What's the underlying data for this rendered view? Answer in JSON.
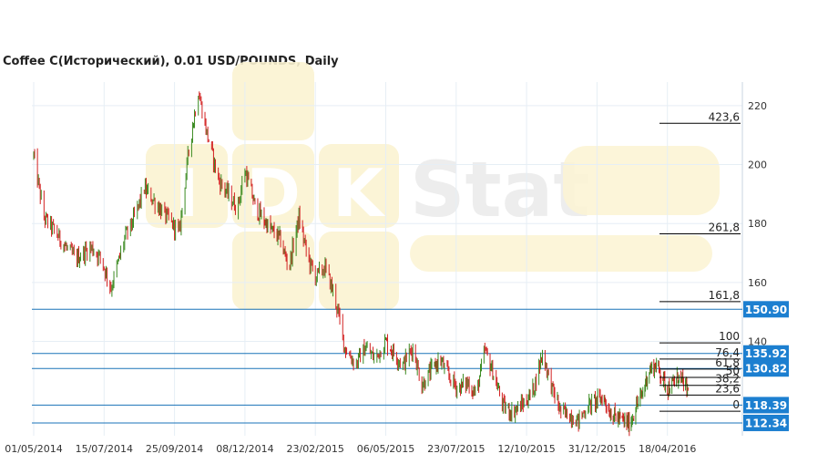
{
  "title": "Coffee C(Исторический), 0.01 USD/POUNDS, Daily",
  "watermark": {
    "letters": [
      "I",
      "D",
      "K"
    ],
    "word": "Stat"
  },
  "colors": {
    "up": "#3a8a20",
    "down": "#d22020",
    "level_line": "#1a73b8",
    "badge_bg": "#1c7fd0",
    "fib_line": "#000000",
    "grid": "#e6eef5",
    "watermark": "#fbf3d2"
  },
  "chart_data": {
    "type": "candlestick",
    "title": "Coffee C(Исторический), 0.01 USD/POUNDS, Daily",
    "xlabel": "",
    "ylabel": "",
    "ylim": [
      108,
      228
    ],
    "y_ticks": [
      220,
      200,
      180,
      160,
      140
    ],
    "grid": true,
    "x_ticks": [
      "01/05/2014",
      "15/07/2014",
      "25/09/2014",
      "08/12/2014",
      "23/02/2015",
      "06/05/2015",
      "23/07/2015",
      "12/10/2015",
      "31/12/2015",
      "18/04/2016"
    ],
    "price_path": [
      [
        "01/05/2014",
        203
      ],
      [
        "12/05/2014",
        182
      ],
      [
        "22/05/2014",
        178
      ],
      [
        "04/06/2014",
        172
      ],
      [
        "15/06/2014",
        168
      ],
      [
        "01/07/2014",
        172
      ],
      [
        "12/07/2014",
        168
      ],
      [
        "22/07/2014",
        158
      ],
      [
        "05/08/2014",
        175
      ],
      [
        "15/08/2014",
        182
      ],
      [
        "25/08/2014",
        192
      ],
      [
        "10/09/2014",
        185
      ],
      [
        "22/09/2014",
        180
      ],
      [
        "30/09/2014",
        177
      ],
      [
        "10/10/2014",
        205
      ],
      [
        "20/10/2014",
        225
      ],
      [
        "28/10/2014",
        212
      ],
      [
        "10/11/2014",
        195
      ],
      [
        "20/11/2014",
        190
      ],
      [
        "30/11/2014",
        185
      ],
      [
        "08/12/2014",
        198
      ],
      [
        "20/12/2014",
        185
      ],
      [
        "05/01/2015",
        178
      ],
      [
        "15/01/2015",
        175
      ],
      [
        "25/01/2015",
        165
      ],
      [
        "05/02/2015",
        182
      ],
      [
        "15/02/2015",
        168
      ],
      [
        "23/02/2015",
        162
      ],
      [
        "05/03/2015",
        165
      ],
      [
        "15/03/2015",
        155
      ],
      [
        "25/03/2015",
        138
      ],
      [
        "05/04/2015",
        132
      ],
      [
        "15/04/2015",
        138
      ],
      [
        "25/04/2015",
        134
      ],
      [
        "06/05/2015",
        140
      ],
      [
        "15/05/2015",
        136
      ],
      [
        "25/05/2015",
        132
      ],
      [
        "05/06/2015",
        138
      ],
      [
        "15/06/2015",
        125
      ],
      [
        "25/06/2015",
        130
      ],
      [
        "05/07/2015",
        134
      ],
      [
        "15/07/2015",
        128
      ],
      [
        "25/07/2015",
        124
      ],
      [
        "05/08/2015",
        126
      ],
      [
        "15/08/2015",
        122
      ],
      [
        "25/08/2015",
        137
      ],
      [
        "05/09/2015",
        128
      ],
      [
        "15/09/2015",
        118
      ],
      [
        "25/09/2015",
        116
      ],
      [
        "05/10/2015",
        118
      ],
      [
        "12/10/2015",
        120
      ],
      [
        "20/10/2015",
        124
      ],
      [
        "30/10/2015",
        136
      ],
      [
        "10/11/2015",
        124
      ],
      [
        "20/11/2015",
        116
      ],
      [
        "01/12/2015",
        115
      ],
      [
        "10/12/2015",
        113
      ],
      [
        "20/12/2015",
        118
      ],
      [
        "31/12/2015",
        120
      ],
      [
        "10/01/2016",
        121
      ],
      [
        "20/01/2016",
        116
      ],
      [
        "01/02/2016",
        114
      ],
      [
        "10/02/2016",
        113
      ],
      [
        "20/02/2016",
        112
      ],
      [
        "01/03/2016",
        118
      ],
      [
        "10/03/2016",
        122
      ],
      [
        "20/03/2016",
        130
      ],
      [
        "01/04/2016",
        132
      ],
      [
        "10/04/2016",
        128
      ],
      [
        "18/04/2016",
        124
      ],
      [
        "25/04/2016",
        125
      ],
      [
        "05/05/2016",
        128
      ],
      [
        "15/05/2016",
        125
      ],
      [
        "20/05/2016",
        123
      ]
    ],
    "fibonacci_levels": [
      {
        "label": "423,6",
        "value": 214
      },
      {
        "label": "261,8",
        "value": 176.5
      },
      {
        "label": "161,8",
        "value": 153.5
      },
      {
        "label": "100",
        "value": 139.5
      },
      {
        "label": "76,4",
        "value": 134
      },
      {
        "label": "61,8",
        "value": 130.6
      },
      {
        "label": "50",
        "value": 127.8
      },
      {
        "label": "38,2",
        "value": 125.1
      },
      {
        "label": "23,6",
        "value": 121.8
      },
      {
        "label": "0",
        "value": 116.3
      }
    ],
    "horizontal_levels": [
      {
        "label": "150.90",
        "value": 150.9
      },
      {
        "label": "135.92",
        "value": 135.92
      },
      {
        "label": "130.82",
        "value": 130.82
      },
      {
        "label": "118.39",
        "value": 118.39
      },
      {
        "label": "112.34",
        "value": 112.34
      }
    ]
  }
}
